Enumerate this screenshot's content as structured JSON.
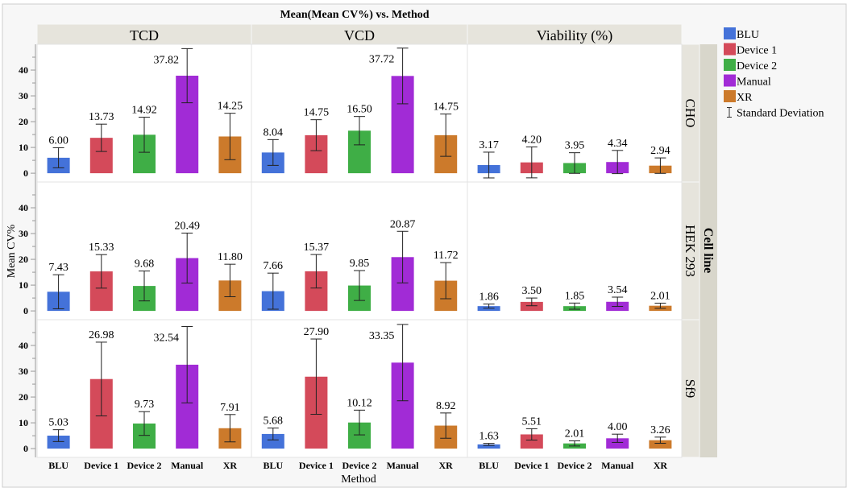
{
  "chart_data": {
    "type": "bar",
    "title": "Mean(Mean CV%) vs. Method",
    "xlabel": "Method",
    "ylabel": "Mean CV%",
    "row_group_label": "Cell line",
    "columns": [
      "TCD",
      "VCD",
      "Viability (%)"
    ],
    "rows": [
      "CHO",
      "HEK 293",
      "Sf9"
    ],
    "categories": [
      "BLU",
      "Device 1",
      "Device 2",
      "Manual",
      "XR"
    ],
    "colors": [
      "#4472d9",
      "#d44a5a",
      "#3fae46",
      "#a12bd6",
      "#cc7a2b"
    ],
    "ylim": [
      -3.4,
      50
    ],
    "yticks": [
      0,
      10,
      20,
      30,
      40
    ],
    "grid": false,
    "legend_position": "right",
    "legend": [
      "BLU",
      "Device 1",
      "Device 2",
      "Manual",
      "XR",
      "Standard Deviation"
    ],
    "panels": [
      {
        "row": "CHO",
        "column": "TCD",
        "values": [
          6.0,
          13.73,
          14.92,
          37.82,
          14.25
        ],
        "sd": [
          3.9,
          5.3,
          6.8,
          10.5,
          9.0
        ]
      },
      {
        "row": "CHO",
        "column": "VCD",
        "values": [
          8.04,
          14.75,
          16.5,
          37.72,
          14.75
        ],
        "sd": [
          5.0,
          6.0,
          5.5,
          10.8,
          8.2
        ]
      },
      {
        "row": "CHO",
        "column": "Viability (%)",
        "values": [
          3.17,
          4.2,
          3.95,
          4.34,
          2.94
        ],
        "sd": [
          5.0,
          6.0,
          4.0,
          4.5,
          3.0
        ]
      },
      {
        "row": "HEK 293",
        "column": "TCD",
        "values": [
          7.43,
          15.33,
          9.68,
          20.49,
          11.8
        ],
        "sd": [
          6.6,
          6.5,
          5.8,
          9.7,
          6.3
        ]
      },
      {
        "row": "HEK 293",
        "column": "VCD",
        "values": [
          7.66,
          15.37,
          9.85,
          20.87,
          11.72
        ],
        "sd": [
          7.0,
          6.5,
          5.8,
          10.0,
          7.0
        ]
      },
      {
        "row": "HEK 293",
        "column": "Viability (%)",
        "values": [
          1.86,
          3.5,
          1.85,
          3.54,
          2.01
        ],
        "sd": [
          0.8,
          1.5,
          1.2,
          1.8,
          1.0
        ]
      },
      {
        "row": "Sf9",
        "column": "TCD",
        "values": [
          5.03,
          26.98,
          9.73,
          32.54,
          7.91
        ],
        "sd": [
          2.3,
          14.3,
          4.6,
          14.8,
          5.3
        ]
      },
      {
        "row": "Sf9",
        "column": "VCD",
        "values": [
          5.68,
          27.9,
          10.12,
          33.35,
          8.92
        ],
        "sd": [
          2.3,
          14.6,
          4.8,
          14.8,
          4.9
        ]
      },
      {
        "row": "Sf9",
        "column": "Viability (%)",
        "values": [
          1.63,
          5.51,
          2.01,
          4.0,
          3.26
        ],
        "sd": [
          0.4,
          2.2,
          1.0,
          1.6,
          1.2
        ]
      }
    ]
  }
}
